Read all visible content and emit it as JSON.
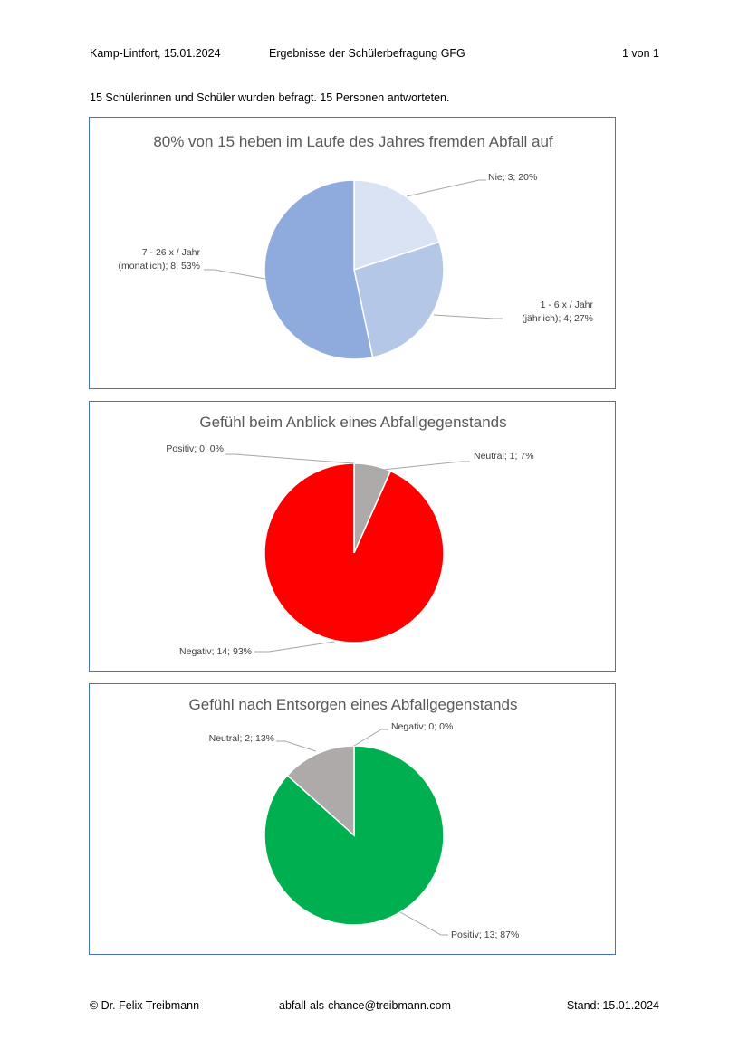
{
  "header": {
    "place_date": "Kamp-Lintfort, 15.01.2024",
    "title": "Ergebnisse der Schülerbefragung GFG",
    "page": "1 von 1"
  },
  "intro": "15 Schülerinnen und Schüler wurden befragt. 15 Personen antworteten.",
  "footer": {
    "author": "© Dr. Felix Treibmann",
    "email": "abfall-als-chance@treibmann.com",
    "stand": "Stand: 15.01.2024"
  },
  "chart_data": [
    {
      "type": "pie",
      "title": "80% von 15 heben im Laufe des Jahres fremden Abfall auf",
      "slices": [
        {
          "name": "Nie",
          "value": 3,
          "percent": "20%",
          "label_lines": [
            "Nie; 3; 20%"
          ],
          "color": "#dae3f3"
        },
        {
          "name": "1 - 6 x / Jahr (jährlich)",
          "value": 4,
          "percent": "27%",
          "label_lines": [
            "1 - 6 x / Jahr",
            "(jährlich); 4; 27%"
          ],
          "color": "#b4c7e7"
        },
        {
          "name": "7 - 26 x / Jahr (monatlich)",
          "value": 8,
          "percent": "53%",
          "label_lines": [
            "7 - 26 x / Jahr",
            "(monatlich); 8; 53%"
          ],
          "color": "#8faadc"
        }
      ]
    },
    {
      "type": "pie",
      "title": "Gefühl beim Anblick eines Abfallgegenstands",
      "slices": [
        {
          "name": "Neutral",
          "value": 1,
          "percent": "7%",
          "label_lines": [
            "Neutral; 1; 7%"
          ],
          "color": "#aeaaaa"
        },
        {
          "name": "Negativ",
          "value": 14,
          "percent": "93%",
          "label_lines": [
            "Negativ; 14; 93%"
          ],
          "color": "#ff0000"
        },
        {
          "name": "Positiv",
          "value": 0,
          "percent": "0%",
          "label_lines": [
            "Positiv; 0; 0%"
          ],
          "color": "#00b050"
        }
      ]
    },
    {
      "type": "pie",
      "title": "Gefühl nach Entsorgen eines Abfallgegenstands",
      "slices": [
        {
          "name": "Negativ",
          "value": 0,
          "percent": "0%",
          "label_lines": [
            "Negativ; 0; 0%"
          ],
          "color": "#ff0000"
        },
        {
          "name": "Positiv",
          "value": 13,
          "percent": "87%",
          "label_lines": [
            "Positiv; 13; 87%"
          ],
          "color": "#00b050"
        },
        {
          "name": "Neutral",
          "value": 2,
          "percent": "13%",
          "label_lines": [
            "Neutral; 2; 13%"
          ],
          "color": "#aeaaaa"
        }
      ]
    }
  ]
}
